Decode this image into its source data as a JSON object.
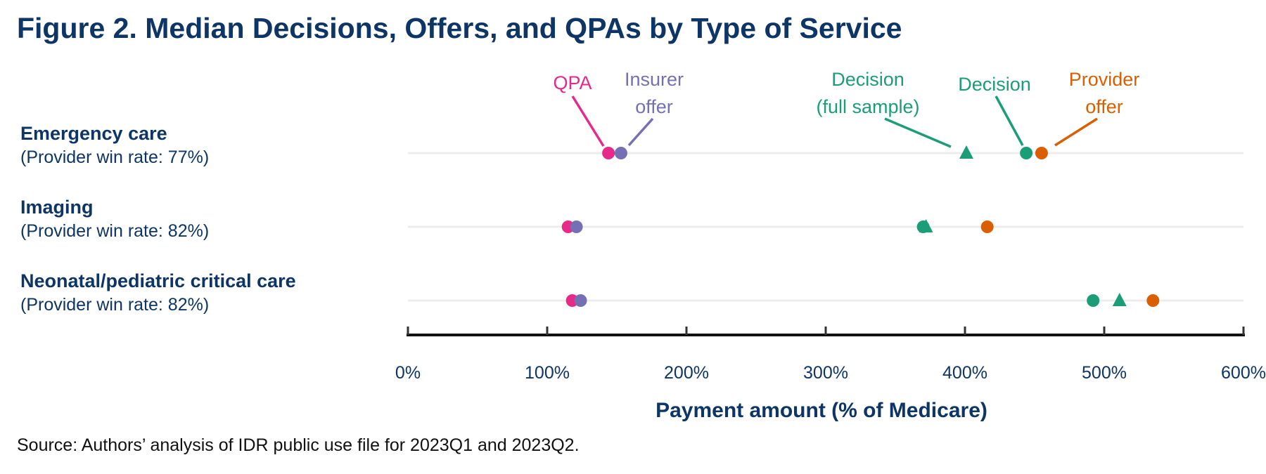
{
  "chart_data": {
    "type": "scatter",
    "title": "Figure 2. Median Decisions, Offers, and QPAs by Type of Service",
    "xlabel": "Payment amount (% of Medicare)",
    "xlim": [
      0,
      600
    ],
    "xticks": [
      "0%",
      "100%",
      "200%",
      "300%",
      "400%",
      "500%",
      "600%"
    ],
    "grid": "horizontal row lines",
    "categories": [
      {
        "name": "Emergency care",
        "sub": "(Provider win rate: 77%)"
      },
      {
        "name": "Imaging",
        "sub": "(Provider win rate: 82%)"
      },
      {
        "name": "Neonatal/pediatric critical care",
        "sub": "(Provider win rate: 82%)"
      }
    ],
    "series": [
      {
        "name": "QPA",
        "label_lines": [
          "QPA"
        ],
        "marker": "circle",
        "color": "#e7298a",
        "values": [
          144,
          115,
          118
        ]
      },
      {
        "name": "Insurer offer",
        "label_lines": [
          "Insurer",
          "offer"
        ],
        "marker": "circle",
        "color": "#7570b3",
        "values": [
          153,
          121,
          124
        ]
      },
      {
        "name": "Decision (full sample)",
        "label_lines": [
          "Decision",
          "(full sample)"
        ],
        "marker": "triangle",
        "color": "#1b9e77",
        "values": [
          401,
          372,
          511
        ]
      },
      {
        "name": "Decision",
        "label_lines": [
          "Decision"
        ],
        "marker": "circle",
        "color": "#1b9e77",
        "values": [
          444,
          370,
          492
        ]
      },
      {
        "name": "Provider offer",
        "label_lines": [
          "Provider",
          "offer"
        ],
        "marker": "circle",
        "color": "#d95f02",
        "values": [
          455,
          416,
          535
        ]
      }
    ],
    "source": "Source: Authors’ analysis of IDR public use file for 2023Q1 and 2023Q2."
  }
}
